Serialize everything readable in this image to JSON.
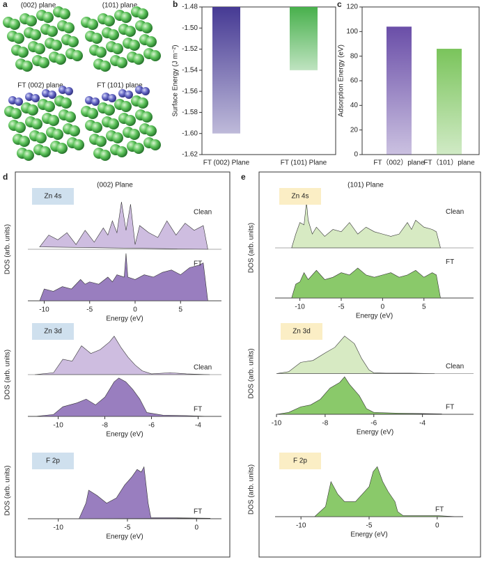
{
  "structures": {
    "label": "a",
    "titles": [
      "(002) plane",
      "(101) plane",
      "FT (002) plane",
      "FT (101) plane"
    ]
  },
  "chart_data": [
    {
      "type": "bar",
      "label": "b",
      "ylabel": "Surface Energy (J m⁻²)",
      "categories": [
        "FT (002) Plane",
        "FT (101) Plane"
      ],
      "values": [
        -1.6,
        -1.54
      ],
      "colors": [
        "#463a94",
        "#48b04c"
      ],
      "ylim": [
        -1.62,
        -1.48
      ],
      "yticks": [
        -1.62,
        {
          "value": -1.6,
          "label": "-1.60"
        },
        -1.58,
        -1.56,
        -1.54,
        -1.52,
        {
          "value": -1.5,
          "label": "-1.50"
        },
        -1.48
      ]
    },
    {
      "type": "bar",
      "label": "c",
      "ylabel": "Adsorption Energy (eV)",
      "categories": [
        "FT（002）plane",
        "FT（101）plane"
      ],
      "values": [
        104,
        86
      ],
      "colors": [
        "#6a4ea8",
        "#7ac45b"
      ],
      "ylim": [
        0,
        120
      ],
      "yticks": [
        0,
        20,
        40,
        60,
        80,
        100,
        120
      ]
    },
    {
      "type": "dos",
      "label": "d",
      "title": "(002) Plane",
      "ylabel": "DOS (arb. units)",
      "xlabel": "Energy (eV)",
      "panels": [
        {
          "label": "Zn 4s",
          "xlim": [
            -11.8,
            9.5
          ],
          "xticks": [
            -10,
            -5,
            0,
            5
          ],
          "ylim": [
            0,
            1
          ],
          "series": [
            {
              "name": "Clean",
              "color": "#c9b6dd",
              "x": [
                -10.5,
                -9.5,
                -8.5,
                -7.5,
                -6.5,
                -5.5,
                -4.5,
                -3.5,
                -3,
                -2.5,
                -2,
                -1.5,
                -1,
                -0.5,
                0,
                0.5,
                1.5,
                2.5,
                3.5,
                4.5,
                5.5,
                6.5,
                7.5,
                8
              ],
              "values": [
                0.05,
                0.3,
                0.2,
                0.35,
                0.1,
                0.4,
                0.15,
                0.45,
                0.3,
                0.6,
                0.35,
                1,
                0.4,
                0.95,
                0.1,
                0.5,
                0.35,
                0.25,
                0.6,
                0.3,
                0.55,
                0.4,
                0.5,
                0
              ]
            },
            {
              "name": "FT",
              "color": "#8e70b8",
              "x": [
                -10.5,
                -10,
                -9,
                -8,
                -7,
                -6,
                -5.5,
                -5,
                -4,
                -3,
                -2.5,
                -2,
                -1.2,
                -1,
                -0.8,
                0,
                1,
                2,
                3,
                4,
                5,
                6,
                7,
                7.5,
                8
              ],
              "values": [
                0,
                0.25,
                0.2,
                0.3,
                0.25,
                0.45,
                0.35,
                0.4,
                0.35,
                0.5,
                0.4,
                0.55,
                0.5,
                1,
                0.5,
                0.45,
                0.55,
                0.5,
                0.6,
                0.65,
                0.55,
                0.7,
                0.75,
                0.8,
                0
              ]
            }
          ]
        },
        {
          "label": "Zn 3d",
          "xlim": [
            -11.3,
            -3
          ],
          "xticks": [
            -10,
            -8,
            -6,
            -4
          ],
          "ylim": [
            0,
            1
          ],
          "series": [
            {
              "name": "Clean",
              "color": "#c9b6dd",
              "x": [
                -11,
                -10.2,
                -9.8,
                -9.4,
                -9,
                -8.6,
                -8.2,
                -7.8,
                -7.6,
                -7.3,
                -7,
                -6.7,
                -6.4,
                -6,
                -5.2,
                -4.5,
                -3.5
              ],
              "values": [
                0,
                0.05,
                0.4,
                0.35,
                0.75,
                0.55,
                0.65,
                0.85,
                1,
                0.7,
                0.45,
                0.25,
                0.1,
                0.02,
                0.05,
                0.02,
                0
              ]
            },
            {
              "name": "FT",
              "color": "#8e70b8",
              "x": [
                -11,
                -10.2,
                -9.8,
                -9.2,
                -8.8,
                -8.4,
                -8,
                -7.6,
                -7.4,
                -7.1,
                -6.8,
                -6.5,
                -6.2,
                -5.5,
                -4.5,
                -3.5
              ],
              "values": [
                0,
                0.05,
                0.25,
                0.35,
                0.45,
                0.3,
                0.5,
                0.9,
                1,
                0.9,
                0.7,
                0.45,
                0.1,
                0.03,
                0.02,
                0
              ]
            }
          ]
        },
        {
          "label": "F 2p",
          "xlim": [
            -12.2,
            1.8
          ],
          "xticks": [
            -10,
            -5,
            0
          ],
          "ylim": [
            0,
            1
          ],
          "series": [
            {
              "name": "FT",
              "color": "#8e70b8",
              "x": [
                -8.5,
                -8,
                -7.8,
                -7.2,
                -6.5,
                -5.8,
                -5.2,
                -4.7,
                -4.3,
                -4,
                -3.8,
                -3.5,
                -3.3,
                -2,
                1
              ],
              "values": [
                0,
                0.3,
                0.55,
                0.45,
                0.3,
                0.4,
                0.65,
                0.8,
                0.95,
                0.9,
                1,
                0.3,
                0.02,
                0.02,
                0.01
              ]
            }
          ]
        }
      ]
    },
    {
      "type": "dos",
      "label": "e",
      "title": "(101) Plane",
      "ylabel": "DOS (arb. units)",
      "xlabel": "Energy (eV)",
      "panels": [
        {
          "label": "Zn 4s",
          "xlim": [
            -13,
            11
          ],
          "xticks": [
            -10,
            -5,
            0,
            5
          ],
          "ylim": [
            0,
            1
          ],
          "series": [
            {
              "name": "Clean",
              "color": "#d3e8bd",
              "x": [
                -11,
                -10.5,
                -10,
                -9.5,
                -9.2,
                -9,
                -8.5,
                -8,
                -7,
                -6,
                -5,
                -4,
                -3,
                -2,
                -1,
                0,
                1,
                2,
                3,
                3.5,
                4,
                5,
                6,
                6.5,
                7
              ],
              "values": [
                0,
                0.3,
                0.55,
                0.5,
                1,
                0.6,
                0.3,
                0.45,
                0.25,
                0.4,
                0.35,
                0.55,
                0.3,
                0.45,
                0.35,
                0.3,
                0.25,
                0.3,
                0.55,
                0.4,
                0.6,
                0.45,
                0.4,
                0.35,
                0
              ]
            },
            {
              "name": "FT",
              "color": "#7dc35a",
              "x": [
                -11,
                -10.5,
                -10,
                -9.5,
                -9,
                -8,
                -7,
                -6,
                -5,
                -4,
                -3,
                -2,
                -1,
                0,
                1,
                2,
                3,
                4,
                5,
                6,
                6.5,
                7
              ],
              "values": [
                0,
                0.3,
                0.35,
                0.55,
                0.4,
                0.6,
                0.4,
                0.45,
                0.55,
                0.5,
                0.65,
                0.5,
                0.45,
                0.5,
                0.55,
                0.45,
                0.5,
                0.6,
                0.45,
                0.55,
                0.5,
                0
              ]
            }
          ]
        },
        {
          "label": "Zn 3d",
          "xlim": [
            -10,
            -1.9
          ],
          "xticks": [
            -10,
            -8,
            -6,
            -4
          ],
          "ylim": [
            0,
            1
          ],
          "series": [
            {
              "name": "Clean",
              "color": "#d3e8bd",
              "x": [
                -10,
                -9.5,
                -9,
                -8.5,
                -8,
                -7.6,
                -7.2,
                -6.8,
                -6.5,
                -6.2,
                -6,
                -5.5,
                -5,
                -4.5,
                -3.5
              ],
              "values": [
                0,
                0.05,
                0.3,
                0.35,
                0.55,
                0.7,
                1,
                0.8,
                0.4,
                0.1,
                0.02,
                0.01,
                0.01,
                0.01,
                0
              ]
            },
            {
              "name": "FT",
              "color": "#7dc35a",
              "x": [
                -10,
                -9.5,
                -9,
                -8.6,
                -8.2,
                -7.8,
                -7.4,
                -7.2,
                -7,
                -6.6,
                -6.3,
                -6,
                -5,
                -4,
                -3.2
              ],
              "values": [
                0,
                0.05,
                0.2,
                0.25,
                0.4,
                0.7,
                0.85,
                1,
                0.8,
                0.5,
                0.15,
                0.05,
                0.03,
                0.02,
                0.01
              ]
            }
          ]
        },
        {
          "label": "F 2p",
          "xlim": [
            -11.9,
            1.9
          ],
          "xticks": [
            -10,
            -5,
            0
          ],
          "ylim": [
            0,
            1
          ],
          "series": [
            {
              "name": "FT",
              "color": "#7dc35a",
              "x": [
                -9,
                -8.2,
                -7.8,
                -7.3,
                -6.8,
                -6,
                -5.5,
                -5,
                -4.7,
                -4.4,
                -4,
                -3.6,
                -3.1,
                -2.9,
                -2.5,
                0,
                1.5
              ],
              "values": [
                0,
                0.2,
                0.7,
                0.45,
                0.3,
                0.3,
                0.45,
                0.6,
                0.9,
                1,
                0.7,
                0.5,
                0.3,
                0.1,
                0.02,
                0.02,
                0
              ]
            }
          ]
        }
      ]
    }
  ]
}
